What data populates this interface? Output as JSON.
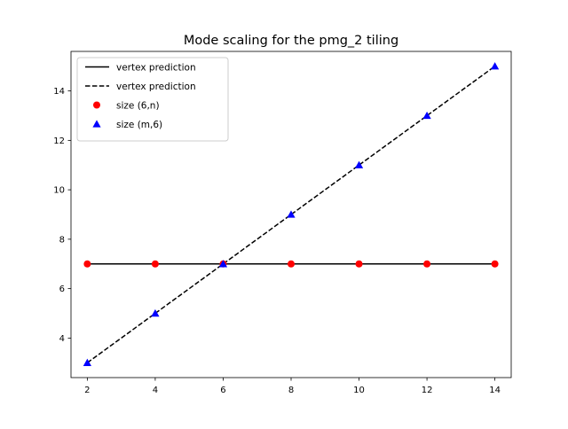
{
  "chart_data": {
    "type": "line",
    "title": "Mode scaling for the pmg_2 tiling",
    "xlabel": "",
    "ylabel": "",
    "xlim": [
      1.52,
      14.48
    ],
    "ylim": [
      2.4,
      15.6
    ],
    "xticks": [
      2,
      4,
      6,
      8,
      10,
      12,
      14
    ],
    "yticks": [
      4,
      6,
      8,
      10,
      12,
      14
    ],
    "grid": false,
    "legend_position": "top-left",
    "series": [
      {
        "name": "vertex prediction",
        "kind": "line",
        "style": "solid",
        "color": "#000000",
        "x": [
          2,
          14
        ],
        "y": [
          7,
          7
        ]
      },
      {
        "name": "vertex prediction",
        "kind": "line",
        "style": "dashed",
        "color": "#000000",
        "x": [
          2,
          14
        ],
        "y": [
          3,
          15
        ]
      },
      {
        "name": "size (6,n)",
        "kind": "scatter",
        "marker": "circle",
        "color": "#ff0000",
        "x": [
          2,
          4,
          6,
          8,
          10,
          12,
          14
        ],
        "y": [
          7,
          7,
          7,
          7,
          7,
          7,
          7
        ]
      },
      {
        "name": "size (m,6)",
        "kind": "scatter",
        "marker": "triangle",
        "color": "#0000ff",
        "x": [
          2,
          4,
          6,
          8,
          10,
          12,
          14
        ],
        "y": [
          3,
          5,
          7,
          9,
          11,
          13,
          15
        ]
      }
    ]
  }
}
